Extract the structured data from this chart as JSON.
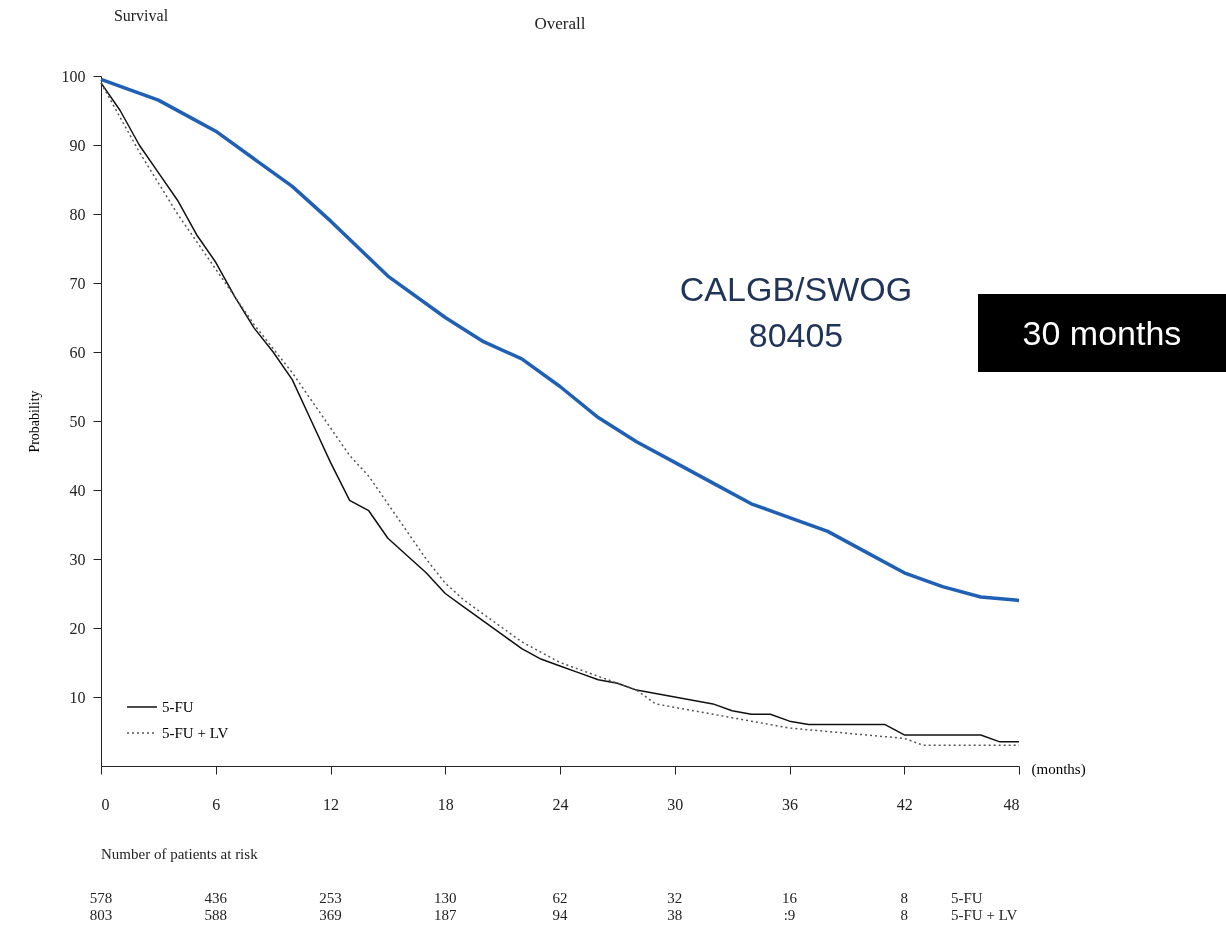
{
  "chart_data": {
    "type": "line",
    "title": "Overall",
    "xlabel": "(months)",
    "ylabel": "Probability",
    "xlim": [
      0,
      48
    ],
    "xticks": [
      0,
      6,
      12,
      18,
      24,
      30,
      36,
      42,
      48
    ],
    "ylim": [
      0,
      100
    ],
    "yticks": [
      10,
      20,
      30,
      40,
      50,
      60,
      70,
      80,
      90,
      100
    ],
    "grid": false,
    "legend": "bottom left",
    "x": [
      0,
      1,
      2,
      3,
      4,
      5,
      6,
      7,
      8,
      9,
      10,
      11,
      12,
      13,
      14,
      15,
      16,
      17,
      18,
      19,
      20,
      21,
      22,
      23,
      24,
      25,
      26,
      27,
      28,
      29,
      30,
      31,
      32,
      33,
      34,
      35,
      36,
      37,
      38,
      39,
      40,
      41,
      42,
      43,
      44,
      45,
      46,
      47,
      48
    ],
    "series": [
      {
        "name": "5-FU",
        "color": "#111111",
        "line_style": "solid",
        "values": [
          99,
          95,
          90,
          86,
          82,
          77,
          73,
          68,
          63.5,
          60,
          56,
          50,
          44,
          38.5,
          37,
          33,
          30.5,
          28,
          25,
          23,
          21,
          19,
          17,
          15.5,
          14.5,
          13.5,
          12.5,
          12,
          11,
          10.5,
          10,
          9.5,
          9,
          8,
          7.5,
          7.5,
          6.5,
          6,
          6,
          6,
          6,
          6,
          4.5,
          4.5,
          4.5,
          4.5,
          4.5,
          3.5,
          3.5
        ]
      },
      {
        "name": "5-FU + LV",
        "color": "#555555",
        "line_style": "dotted",
        "x": [
          0,
          2,
          4,
          6,
          8,
          10,
          11,
          12,
          13,
          14,
          15,
          16,
          17,
          18,
          19,
          20,
          21,
          22,
          23,
          24,
          25,
          26,
          27,
          28,
          29,
          30,
          31,
          32,
          33,
          34,
          35,
          36,
          38,
          40,
          42,
          43,
          48
        ],
        "values": [
          99,
          89,
          80,
          72,
          64,
          57,
          53,
          49,
          45,
          42,
          38,
          34,
          30,
          26.5,
          24,
          22,
          20,
          18,
          16.5,
          15,
          14,
          13,
          12,
          11,
          9,
          8.5,
          8,
          7.5,
          7,
          6.5,
          6,
          5.5,
          5,
          4.5,
          4,
          3,
          3
        ]
      },
      {
        "color": "#1f5fb4",
        "x": [
          0,
          3,
          5,
          6,
          9,
          10,
          12,
          15,
          18,
          20,
          22,
          24,
          26,
          28,
          30,
          32,
          34,
          36,
          38,
          40,
          42,
          44,
          46,
          48
        ],
        "values": [
          99.5,
          96.5,
          93.5,
          92,
          86,
          84,
          79,
          71,
          65,
          61.5,
          59,
          55,
          50.5,
          47,
          44,
          41,
          38,
          36,
          34,
          31,
          28,
          26,
          24.5,
          24
        ]
      }
    ],
    "annotations": [
      "Survival",
      "CALGB/SWOG\n80405",
      "30 months",
      "Number of patients at risk",
      "578",
      "436",
      "253",
      "130",
      "62",
      "32",
      "16",
      "8",
      "5-FU",
      "803",
      "588",
      "369",
      "187",
      "94",
      "38",
      ":9",
      "8",
      "5-FU + LV"
    ]
  }
}
